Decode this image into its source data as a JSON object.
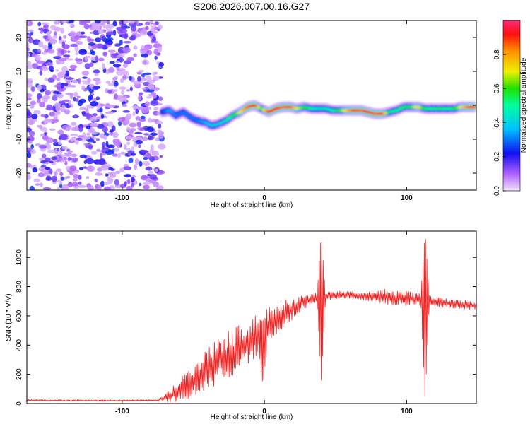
{
  "title": "S206.2026.007.00.16.G27",
  "chart_data": [
    {
      "type": "heatmap",
      "name": "spectrogram",
      "xlabel": "Height of straight line (km)",
      "ylabel": "Frequency (Hz)",
      "xlim": [
        -167,
        149
      ],
      "ylim": [
        -25,
        25
      ],
      "xticks": [
        -100,
        0,
        100
      ],
      "xtick_labels": [
        "-100",
        "0",
        "100"
      ],
      "yticks": [
        -20,
        -10,
        0,
        10,
        20
      ],
      "ytick_labels": [
        "-20",
        "-10",
        "0",
        "10",
        "20"
      ],
      "noise_region_x": [
        -167,
        -72
      ],
      "ridge": {
        "x": [
          -72,
          -67,
          -62,
          -57,
          -52,
          -47,
          -42,
          -37,
          -32,
          -27,
          -22,
          -17,
          -12,
          -7,
          -2,
          3,
          8,
          13,
          18,
          23,
          28,
          33,
          38,
          43,
          48,
          53,
          58,
          63,
          68,
          73,
          78,
          83,
          88,
          93,
          98,
          103,
          108,
          113,
          118,
          123,
          128,
          133,
          138,
          143,
          148
        ],
        "freq": [
          -2,
          -1.5,
          -3,
          -2,
          -3.5,
          -4.5,
          -5,
          -6,
          -5.5,
          -4.5,
          -3,
          -2,
          -0.5,
          0,
          -1,
          -2,
          -1,
          -0.5,
          -0.5,
          -1,
          -0.5,
          -1,
          -1,
          -1,
          -1.5,
          -1.5,
          -1.5,
          -1.5,
          -1.5,
          -2,
          -2.5,
          -2.5,
          -2,
          -1.5,
          -0.5,
          -0.5,
          -0.5,
          -1,
          -1,
          -1,
          -1,
          -1,
          -0.5,
          -0.5,
          -0.5
        ],
        "amplitude": [
          0.25,
          0.35,
          0.3,
          0.3,
          0.3,
          0.3,
          0.35,
          0.4,
          0.4,
          0.45,
          0.55,
          0.7,
          0.85,
          0.95,
          0.6,
          0.9,
          0.9,
          0.85,
          0.9,
          0.7,
          0.6,
          0.5,
          0.45,
          0.45,
          0.5,
          0.6,
          0.75,
          0.9,
          0.85,
          0.9,
          0.85,
          0.9,
          0.55,
          0.5,
          0.55,
          0.6,
          0.75,
          0.55,
          0.5,
          0.55,
          0.5,
          0.55,
          0.7,
          0.85,
          0.95
        ]
      }
    },
    {
      "type": "colorbar",
      "name": "colorbar",
      "label": "Normalized spectral amplitude",
      "range": [
        0,
        1
      ],
      "ticks": [
        0,
        0.2,
        0.4,
        0.6,
        0.8
      ],
      "tick_labels": [
        "0.0",
        "0.2",
        "0.4",
        "0.6",
        "0.8"
      ],
      "colors": [
        "#f0e4ff",
        "#b060ff",
        "#1010f0",
        "#00c0ff",
        "#00ffa0",
        "#20e000",
        "#f0f000",
        "#ff9000",
        "#ff1010",
        "#ff2a78"
      ]
    },
    {
      "type": "line",
      "name": "snr",
      "xlabel": "Height of straight line (km)",
      "ylabel": "SNR (10 * V/V)",
      "xlim": [
        -167,
        149
      ],
      "ylim": [
        0,
        1180
      ],
      "xticks": [
        -100,
        0,
        100
      ],
      "xtick_labels": [
        "-100",
        "0",
        "100"
      ],
      "yticks": [
        0,
        200,
        400,
        600,
        800,
        1000
      ],
      "ytick_labels": [
        "0",
        "200",
        "400",
        "600",
        "800",
        "1000"
      ],
      "color": "#ee2222",
      "envelope": {
        "x": [
          -167,
          -140,
          -100,
          -75,
          -65,
          -55,
          -45,
          -35,
          -25,
          -15,
          -5,
          5,
          15,
          25,
          35,
          45,
          55,
          65,
          75,
          85,
          95,
          105,
          115,
          125,
          135,
          149
        ],
        "mean": [
          22,
          20,
          20,
          22,
          60,
          120,
          200,
          270,
          330,
          390,
          460,
          540,
          620,
          680,
          720,
          740,
          745,
          740,
          735,
          730,
          720,
          715,
          705,
          690,
          680,
          670
        ],
        "spread": [
          6,
          5,
          5,
          6,
          45,
          85,
          110,
          130,
          140,
          140,
          130,
          110,
          80,
          45,
          30,
          25,
          22,
          22,
          30,
          45,
          45,
          40,
          30,
          28,
          28,
          25
        ]
      },
      "spikes": [
        {
          "x": 40,
          "min": 160,
          "max": 1160
        },
        {
          "x": 113,
          "min": 30,
          "max": 1180
        },
        {
          "x": -1,
          "min": 120,
          "max": 570
        }
      ]
    }
  ]
}
